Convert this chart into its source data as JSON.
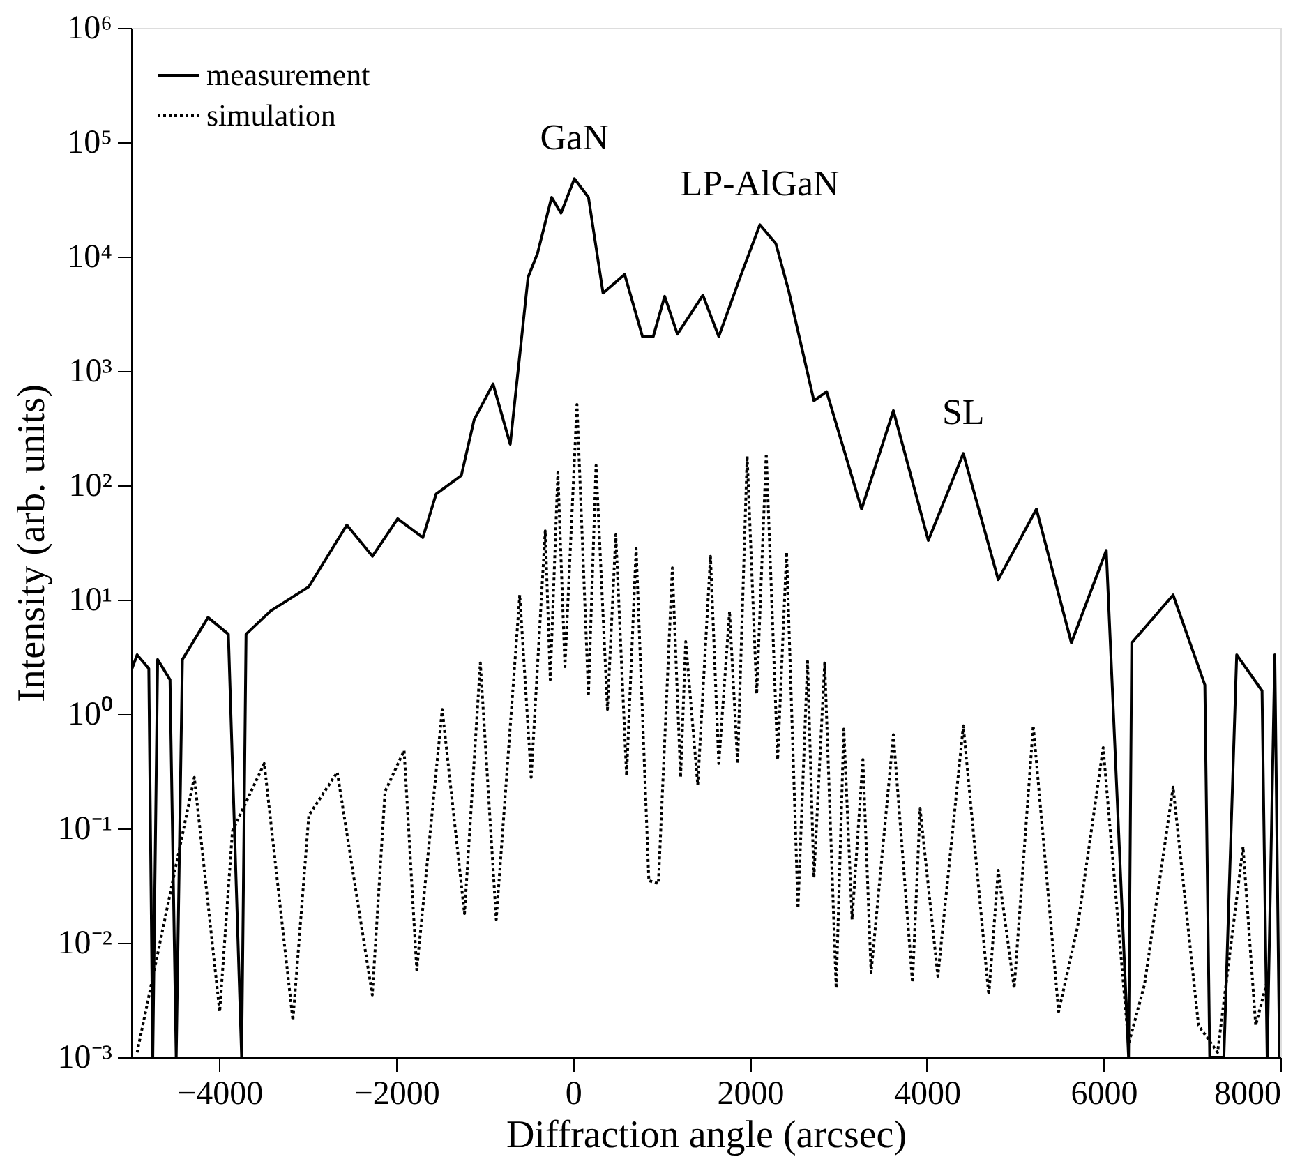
{
  "chart_data": {
    "type": "line",
    "xlabel": "Diffraction angle (arcsec)",
    "ylabel": "Intensity (arb. units)",
    "xlim": [
      -5000,
      8000
    ],
    "xticks": [
      -4000,
      -2000,
      0,
      2000,
      4000,
      6000,
      8000
    ],
    "ylim": [
      0.001,
      1000000
    ],
    "log": "y",
    "yticks": [
      {
        "value": 0.001,
        "label": "10⁻³"
      },
      {
        "value": 0.01,
        "label": "10⁻²"
      },
      {
        "value": 0.1,
        "label": "10⁻¹"
      },
      {
        "value": 1,
        "label": "10⁰"
      },
      {
        "value": 10,
        "label": "10¹"
      },
      {
        "value": 100,
        "label": "10²"
      },
      {
        "value": 1000,
        "label": "10³"
      },
      {
        "value": 10000,
        "label": "10⁴"
      },
      {
        "value": 100000,
        "label": "10⁵"
      },
      {
        "value": 1000000,
        "label": "10⁶"
      }
    ],
    "grid": false,
    "legend": "top left",
    "marker": "none",
    "series": [
      {
        "name": "measurement",
        "color": "#000000",
        "line_style": "solid",
        "x": [
          -4990,
          -4932,
          -4800,
          -4755,
          -4700,
          -4560,
          -4490,
          -4420,
          -4130,
          -3900,
          -3750,
          -3700,
          -3420,
          -2990,
          -2560,
          -2270,
          -1985,
          -1700,
          -1550,
          -1265,
          -1120,
          -906,
          -712,
          -510,
          -403,
          -244,
          -137,
          14,
          173,
          338,
          582,
          784,
          906,
          1035,
          1179,
          1467,
          1647,
          1898,
          2112,
          2292,
          2436,
          2723,
          2867,
          3262,
          3622,
          4017,
          4413,
          4808,
          5240,
          5635,
          6030,
          6282,
          6318,
          6786,
          7145,
          7200,
          7360,
          7505,
          7792,
          7850,
          7936,
          7990
        ],
        "values": [
          2.5,
          3.3,
          2.5,
          0.001,
          3,
          2,
          0.001,
          3,
          7,
          5,
          0.001,
          5,
          8,
          13,
          45,
          24,
          51,
          35,
          84,
          122,
          375,
          770,
          229,
          6600,
          10700,
          33000,
          24000,
          48000,
          33000,
          4800,
          7000,
          2000,
          2000,
          4500,
          2100,
          4600,
          2000,
          6900,
          19000,
          13000,
          5100,
          550,
          660,
          62,
          450,
          33,
          190,
          15,
          62,
          4.2,
          27,
          0.001,
          4.2,
          11,
          1.8,
          0.001,
          0.001,
          3.3,
          1.6,
          0.001,
          3.3,
          0.001
        ]
      },
      {
        "name": "simulation",
        "color": "#000000",
        "line_style": "dotted",
        "x": [
          -4932,
          -4285,
          -3998,
          -3854,
          -3494,
          -3170,
          -2990,
          -2668,
          -2272,
          -2128,
          -1912,
          -1769,
          -1481,
          -1229,
          -1050,
          -870,
          -604,
          -475,
          -316,
          -259,
          -173,
          -93,
          43,
          173,
          259,
          388,
          482,
          604,
          712,
          856,
          964,
          1122,
          1215,
          1273,
          1409,
          1553,
          1647,
          1769,
          1860,
          1968,
          2076,
          2184,
          2313,
          2414,
          2543,
          2651,
          2723,
          2845,
          2975,
          3061,
          3155,
          3277,
          3370,
          3622,
          3838,
          3924,
          4125,
          4413,
          4701,
          4808,
          4988,
          5204,
          5491,
          5707,
          5995,
          6282,
          6462,
          6786,
          7073,
          7289,
          7577,
          7720,
          7864
        ],
        "values": [
          0.0011,
          0.28,
          0.0025,
          0.095,
          0.37,
          0.0021,
          0.13,
          0.31,
          0.0035,
          0.21,
          0.48,
          0.0058,
          1.1,
          0.018,
          2.8,
          0.016,
          11,
          0.28,
          40,
          2,
          130,
          2.6,
          510,
          1.5,
          150,
          1.1,
          37,
          0.29,
          28,
          0.035,
          0.033,
          19,
          0.28,
          4.3,
          0.24,
          24,
          0.37,
          7.9,
          0.37,
          180,
          1.5,
          190,
          0.4,
          26,
          0.02,
          2.9,
          0.037,
          2.8,
          0.004,
          0.74,
          0.016,
          0.4,
          0.0055,
          0.66,
          0.0045,
          0.15,
          0.0051,
          0.79,
          0.0035,
          0.043,
          0.004,
          0.79,
          0.0025,
          0.014,
          0.51,
          0.0013,
          0.0043,
          0.23,
          0.0019,
          0.0011,
          0.069,
          0.0019,
          0.0051
        ]
      }
    ],
    "annotations": [
      {
        "text": "GaN",
        "x": 14,
        "y": 48000
      },
      {
        "text": "LP-AlGaN",
        "x": 2112,
        "y": 19000
      },
      {
        "text": "SL",
        "x": 4413,
        "y": 190
      }
    ]
  }
}
